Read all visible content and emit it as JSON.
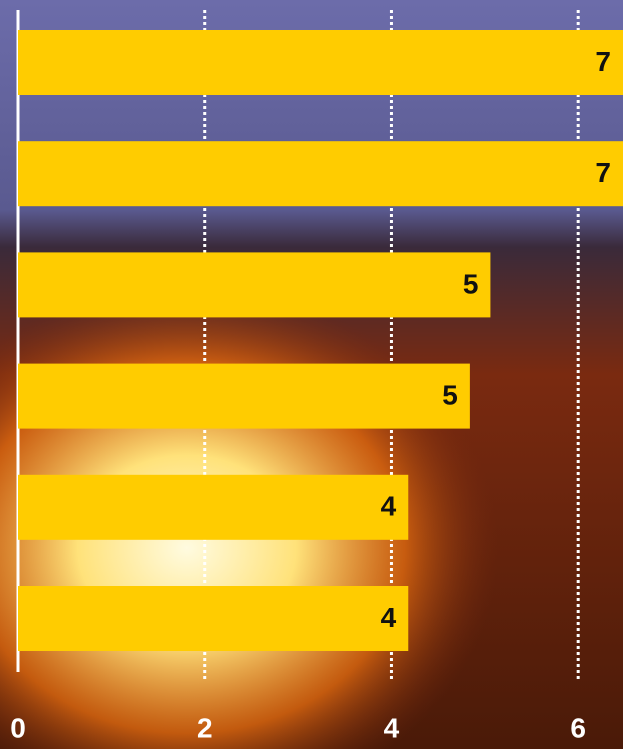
{
  "chart_data": {
    "type": "barh",
    "values": [
      6.8,
      6.8,
      5.06,
      4.84,
      4.18,
      4.18
    ],
    "value_labels": [
      "7",
      "7",
      "5",
      "5",
      "4",
      "4"
    ],
    "color": "#ffcc00",
    "xlim": [
      0,
      6.48
    ],
    "xticks": [
      0,
      2,
      4,
      6
    ],
    "grid": true
  }
}
